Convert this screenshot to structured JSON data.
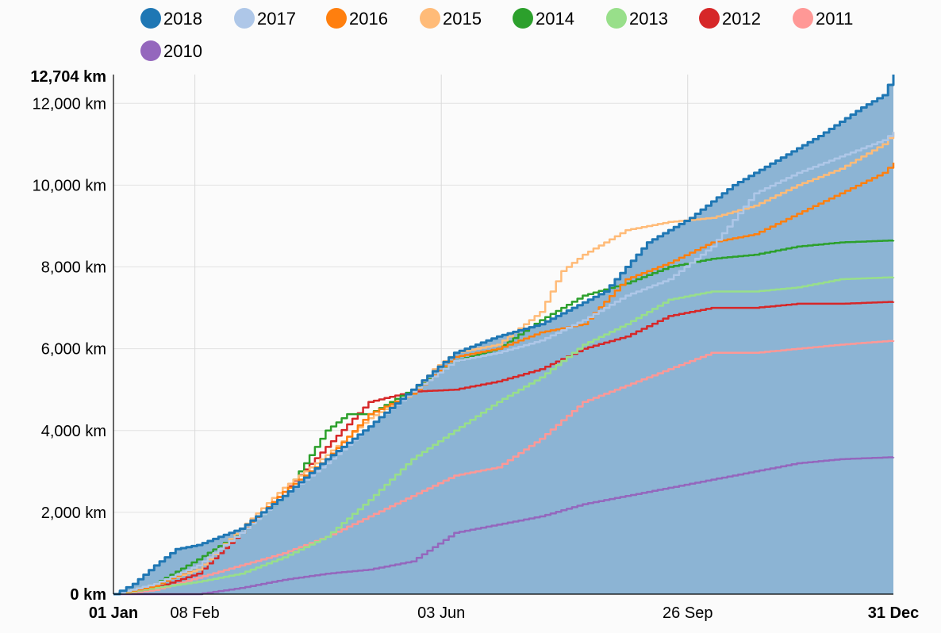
{
  "chart_data": {
    "type": "line",
    "y_unit_suffix": " km",
    "ylim": [
      0,
      12704
    ],
    "y_ticks": [
      0,
      2000,
      4000,
      6000,
      8000,
      10000,
      12000
    ],
    "y_tick_labels": [
      "0 km",
      "2,000 km",
      "4,000 km",
      "6,000 km",
      "8,000 km",
      "10,000 km",
      "12,000 km"
    ],
    "y_max_label": "12,704 km",
    "xlim": [
      1,
      365
    ],
    "x_ticks": [
      1,
      39,
      154,
      269,
      365
    ],
    "x_tick_labels": [
      "01 Jan",
      "08 Feb",
      "03 Jun",
      "26 Sep",
      "31 Dec"
    ],
    "x_bold_ticks": [
      "01 Jan",
      "31 Dec"
    ],
    "grid": true,
    "legend_placement": "top",
    "legend": [
      "2018",
      "2017",
      "2016",
      "2015",
      "2014",
      "2013",
      "2012",
      "2011",
      "2010"
    ],
    "area_series": "2018",
    "area_color": "#8cb4d4",
    "series": [
      {
        "name": "2018",
        "color": "#1f77b4",
        "x": [
          1,
          10,
          20,
          30,
          40,
          60,
          80,
          100,
          120,
          140,
          160,
          180,
          200,
          215,
          230,
          250,
          270,
          290,
          310,
          330,
          350,
          360,
          365
        ],
        "y": [
          0,
          250,
          700,
          1100,
          1200,
          1600,
          2400,
          3300,
          4100,
          5000,
          5900,
          6300,
          6600,
          7000,
          7400,
          8600,
          9200,
          10000,
          10600,
          11200,
          11900,
          12200,
          12704
        ]
      },
      {
        "name": "2017",
        "color": "#aec7e8",
        "x": [
          1,
          20,
          40,
          60,
          80,
          100,
          120,
          140,
          160,
          180,
          200,
          220,
          240,
          260,
          280,
          300,
          320,
          340,
          360,
          365
        ],
        "y": [
          0,
          250,
          700,
          1500,
          2400,
          3200,
          4100,
          4950,
          5700,
          5900,
          6200,
          6700,
          7300,
          7700,
          8500,
          9800,
          10300,
          10700,
          11100,
          11300
        ]
      },
      {
        "name": "2016",
        "color": "#ff7f0e",
        "x": [
          1,
          20,
          40,
          60,
          80,
          100,
          120,
          140,
          160,
          180,
          200,
          220,
          240,
          260,
          280,
          300,
          320,
          340,
          360,
          365
        ],
        "y": [
          0,
          200,
          700,
          1500,
          2500,
          3300,
          4400,
          4900,
          5800,
          6000,
          6400,
          6600,
          7700,
          8100,
          8600,
          8800,
          9300,
          9800,
          10300,
          10550
        ]
      },
      {
        "name": "2015",
        "color": "#ffbb78",
        "x": [
          1,
          20,
          40,
          60,
          80,
          100,
          120,
          140,
          150,
          160,
          180,
          200,
          210,
          220,
          240,
          260,
          280,
          300,
          320,
          340,
          360,
          365
        ],
        "y": [
          0,
          250,
          600,
          1600,
          2600,
          3400,
          4300,
          4900,
          5500,
          5900,
          6100,
          6900,
          7900,
          8300,
          8900,
          9100,
          9200,
          9500,
          10000,
          10400,
          11000,
          11300
        ]
      },
      {
        "name": "2014",
        "color": "#2ca02c",
        "x": [
          1,
          20,
          40,
          60,
          80,
          100,
          110,
          120,
          140,
          160,
          180,
          200,
          220,
          240,
          260,
          280,
          300,
          320,
          340,
          365
        ],
        "y": [
          0,
          250,
          850,
          1500,
          2400,
          4000,
          4400,
          4400,
          5000,
          5700,
          6000,
          6700,
          7300,
          7600,
          8000,
          8200,
          8300,
          8500,
          8600,
          8650
        ]
      },
      {
        "name": "2013",
        "color": "#98df8a",
        "x": [
          1,
          20,
          40,
          60,
          80,
          100,
          120,
          140,
          160,
          180,
          200,
          220,
          240,
          260,
          280,
          300,
          320,
          340,
          365
        ],
        "y": [
          0,
          150,
          300,
          500,
          900,
          1400,
          2300,
          3300,
          4000,
          4700,
          5300,
          6100,
          6600,
          7200,
          7400,
          7400,
          7500,
          7700,
          7750
        ]
      },
      {
        "name": "2012",
        "color": "#d62728",
        "x": [
          1,
          20,
          40,
          60,
          80,
          100,
          120,
          140,
          160,
          180,
          200,
          220,
          240,
          260,
          280,
          300,
          320,
          340,
          365
        ],
        "y": [
          0,
          150,
          500,
          1500,
          2500,
          3600,
          4700,
          4950,
          5000,
          5200,
          5500,
          6000,
          6300,
          6800,
          7000,
          7000,
          7100,
          7100,
          7150
        ]
      },
      {
        "name": "2011",
        "color": "#ff9896",
        "x": [
          1,
          20,
          40,
          60,
          80,
          100,
          120,
          140,
          160,
          180,
          200,
          220,
          240,
          260,
          280,
          300,
          320,
          340,
          365
        ],
        "y": [
          0,
          100,
          400,
          700,
          1000,
          1400,
          1900,
          2400,
          2900,
          3100,
          3800,
          4700,
          5100,
          5500,
          5900,
          5900,
          6000,
          6100,
          6200
        ]
      },
      {
        "name": "2010",
        "color": "#9467bd",
        "x": [
          1,
          20,
          40,
          60,
          80,
          100,
          120,
          140,
          160,
          180,
          200,
          220,
          240,
          260,
          280,
          300,
          320,
          340,
          365
        ],
        "y": [
          0,
          0,
          0,
          150,
          350,
          500,
          600,
          800,
          1500,
          1700,
          1900,
          2200,
          2400,
          2600,
          2800,
          3000,
          3200,
          3300,
          3350
        ]
      }
    ]
  }
}
